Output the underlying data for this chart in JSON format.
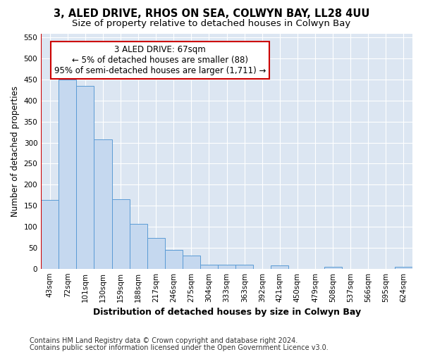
{
  "title": "3, ALED DRIVE, RHOS ON SEA, COLWYN BAY, LL28 4UU",
  "subtitle": "Size of property relative to detached houses in Colwyn Bay",
  "xlabel": "Distribution of detached houses by size in Colwyn Bay",
  "ylabel": "Number of detached properties",
  "categories": [
    "43sqm",
    "72sqm",
    "101sqm",
    "130sqm",
    "159sqm",
    "188sqm",
    "217sqm",
    "246sqm",
    "275sqm",
    "304sqm",
    "333sqm",
    "363sqm",
    "392sqm",
    "421sqm",
    "450sqm",
    "479sqm",
    "508sqm",
    "537sqm",
    "566sqm",
    "595sqm",
    "624sqm"
  ],
  "values": [
    163,
    450,
    435,
    307,
    165,
    107,
    74,
    45,
    32,
    10,
    10,
    9,
    0,
    8,
    0,
    0,
    5,
    0,
    0,
    0,
    5
  ],
  "bar_color": "#c5d8ef",
  "bar_edge_color": "#5b9bd5",
  "vline_color": "#cc0000",
  "annotation_text": "3 ALED DRIVE: 67sqm\n← 5% of detached houses are smaller (88)\n95% of semi-detached houses are larger (1,711) →",
  "annotation_box_color": "#ffffff",
  "annotation_box_edgecolor": "#cc0000",
  "ylim": [
    0,
    560
  ],
  "yticks": [
    0,
    50,
    100,
    150,
    200,
    250,
    300,
    350,
    400,
    450,
    500,
    550
  ],
  "background_color": "#dce6f2",
  "grid_color": "#ffffff",
  "footer_line1": "Contains HM Land Registry data © Crown copyright and database right 2024.",
  "footer_line2": "Contains public sector information licensed under the Open Government Licence v3.0.",
  "title_fontsize": 10.5,
  "subtitle_fontsize": 9.5,
  "xlabel_fontsize": 9,
  "ylabel_fontsize": 8.5,
  "tick_fontsize": 7.5,
  "annotation_fontsize": 8.5,
  "footer_fontsize": 7
}
